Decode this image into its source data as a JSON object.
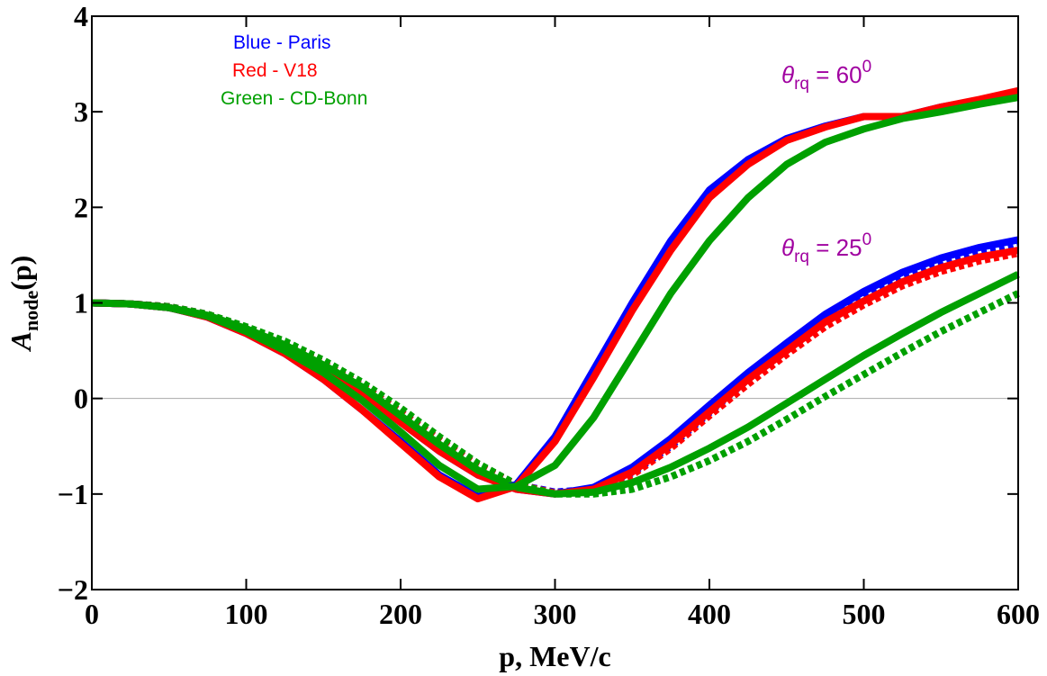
{
  "chart_data": {
    "type": "line",
    "xlabel": "p, MeV/c",
    "ylabel": {
      "main": "A",
      "subscript": "node",
      "suffix": "(p)"
    },
    "x": [
      0,
      25,
      50,
      75,
      100,
      125,
      150,
      175,
      200,
      225,
      250,
      275,
      300,
      325,
      350,
      375,
      400,
      425,
      450,
      475,
      500,
      525,
      550,
      575,
      600
    ],
    "series": [
      {
        "color": "#0000ff",
        "style": "dotted",
        "values": [
          1,
          0.99,
          0.96,
          0.88,
          0.74,
          0.57,
          0.37,
          0.14,
          -0.14,
          -0.43,
          -0.7,
          -0.9,
          -0.98,
          -0.95,
          -0.78,
          -0.5,
          -0.15,
          0.2,
          0.52,
          0.82,
          1.05,
          1.25,
          1.4,
          1.52,
          1.6
        ]
      },
      {
        "color": "#ff0000",
        "style": "dotted",
        "values": [
          1,
          0.99,
          0.96,
          0.88,
          0.74,
          0.57,
          0.37,
          0.14,
          -0.14,
          -0.43,
          -0.7,
          -0.9,
          -0.99,
          -0.97,
          -0.8,
          -0.52,
          -0.18,
          0.15,
          0.46,
          0.75,
          0.98,
          1.18,
          1.33,
          1.44,
          1.52
        ]
      },
      {
        "color": "#00a000",
        "style": "dotted",
        "values": [
          1,
          0.99,
          0.96,
          0.88,
          0.75,
          0.6,
          0.4,
          0.17,
          -0.1,
          -0.4,
          -0.68,
          -0.9,
          -1.0,
          -1.0,
          -0.95,
          -0.82,
          -0.65,
          -0.45,
          -0.22,
          0.02,
          0.25,
          0.48,
          0.7,
          0.9,
          1.1
        ]
      },
      {
        "color": "#0000ff",
        "style": "solid",
        "values": [
          1,
          0.99,
          0.95,
          0.86,
          0.7,
          0.52,
          0.3,
          0.05,
          -0.25,
          -0.55,
          -0.8,
          -0.95,
          -1.0,
          -0.93,
          -0.72,
          -0.42,
          -0.07,
          0.27,
          0.58,
          0.88,
          1.12,
          1.32,
          1.47,
          1.58,
          1.66
        ]
      },
      {
        "color": "#ff0000",
        "style": "solid",
        "values": [
          1,
          0.99,
          0.95,
          0.86,
          0.7,
          0.52,
          0.3,
          0.05,
          -0.25,
          -0.55,
          -0.8,
          -0.95,
          -1.0,
          -0.95,
          -0.77,
          -0.48,
          -0.14,
          0.2,
          0.5,
          0.8,
          1.02,
          1.22,
          1.37,
          1.48,
          1.55
        ]
      },
      {
        "color": "#00a000",
        "style": "solid",
        "values": [
          1,
          0.99,
          0.95,
          0.87,
          0.73,
          0.56,
          0.35,
          0.12,
          -0.18,
          -0.48,
          -0.75,
          -0.93,
          -1.0,
          -0.98,
          -0.88,
          -0.72,
          -0.52,
          -0.3,
          -0.05,
          0.2,
          0.45,
          0.68,
          0.9,
          1.1,
          1.3
        ]
      },
      {
        "color": "#0000ff",
        "style": "solid",
        "values": [
          1,
          0.99,
          0.95,
          0.85,
          0.68,
          0.47,
          0.2,
          -0.12,
          -0.45,
          -0.8,
          -1.03,
          -0.9,
          -0.4,
          0.3,
          1.0,
          1.65,
          2.18,
          2.5,
          2.72,
          2.85,
          2.95,
          2.95,
          3.05,
          3.12,
          3.2
        ]
      },
      {
        "color": "#ff0000",
        "style": "solid",
        "values": [
          1,
          0.99,
          0.95,
          0.85,
          0.68,
          0.47,
          0.2,
          -0.12,
          -0.47,
          -0.82,
          -1.05,
          -0.92,
          -0.45,
          0.22,
          0.92,
          1.55,
          2.1,
          2.45,
          2.7,
          2.84,
          2.95,
          2.95,
          3.05,
          3.13,
          3.22
        ]
      },
      {
        "color": "#00a000",
        "style": "solid",
        "values": [
          1,
          0.99,
          0.95,
          0.86,
          0.7,
          0.5,
          0.27,
          -0.02,
          -0.35,
          -0.7,
          -0.95,
          -0.92,
          -0.7,
          -0.2,
          0.45,
          1.1,
          1.65,
          2.1,
          2.45,
          2.68,
          2.82,
          2.93,
          3.0,
          3.08,
          3.15
        ]
      }
    ],
    "legend": [
      {
        "text": "Blue - Paris",
        "color": "#0000ff"
      },
      {
        "text": "Red - V18",
        "color": "#ff0000"
      },
      {
        "text": "Green - CD-Bonn",
        "color": "#00a000"
      }
    ],
    "annotations": [
      {
        "symbol": "θ",
        "subscript": "rq",
        "text": " = 60",
        "superscript": "0",
        "color": "#a000a0"
      },
      {
        "symbol": "θ",
        "subscript": "rq",
        "text": " = 25",
        "superscript": "0",
        "color": "#a000a0"
      }
    ],
    "xlim": [
      0,
      600
    ],
    "ylim": [
      -2,
      4
    ],
    "xticks": [
      0,
      100,
      200,
      300,
      400,
      500,
      600
    ],
    "yticks": [
      {
        "value": -2,
        "label": "−2"
      },
      {
        "value": -1,
        "label": "−1"
      },
      0,
      1,
      2,
      3,
      4
    ],
    "zero_line": true
  }
}
